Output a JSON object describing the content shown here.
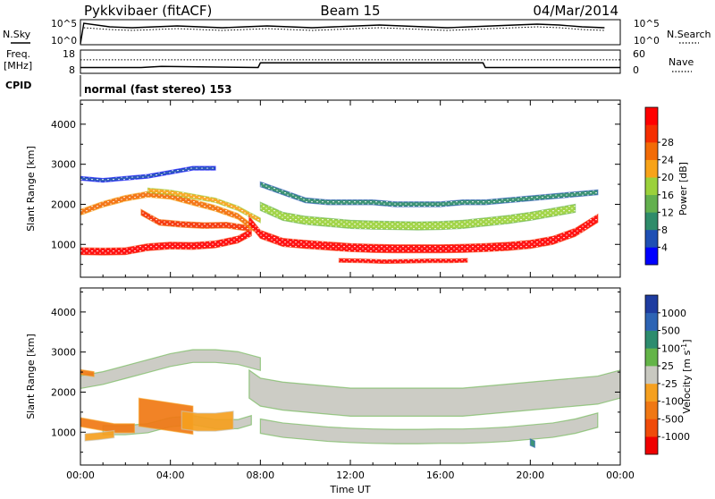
{
  "header": {
    "station": "Pykkvibaer (fitACF)",
    "beam": "Beam 15",
    "date": "04/Mar/2014"
  },
  "top_panels": {
    "nsky_label": "N.Sky",
    "nsearch_label": "N.Search",
    "freq_label_line1": "Freq.",
    "freq_label_line2": "[MHz]",
    "nave_label": "Nave",
    "cpid_label": "CPID",
    "mode_text": "normal (fast stereo) 153",
    "noise_ticks_left": [
      "10^5",
      "10^0"
    ],
    "noise_ticks_right": [
      "10^5",
      "10^0"
    ],
    "freq_ticks": [
      "18",
      "8"
    ],
    "nave_ticks": [
      "60",
      "0"
    ]
  },
  "colors": {
    "power_scale": [
      "#0000ff",
      "#1e4fb4",
      "#2f8c6a",
      "#63b04e",
      "#9bd13b",
      "#f7a319",
      "#f26b06",
      "#f52e00",
      "#ff0000"
    ],
    "velocity_scale": [
      "#1e3ca0",
      "#2d64b4",
      "#2d8c6e",
      "#64b448",
      "#c8c8c0",
      "#f5a020",
      "#f07814",
      "#f04b0a",
      "#f00000"
    ],
    "ground_scatter": "#c8c8c0"
  },
  "chart_data": [
    {
      "type": "line",
      "panel": "noise",
      "series": [
        {
          "name": "N.Sky",
          "style": "solid",
          "level": "high"
        },
        {
          "name": "N.Search",
          "style": "dotted",
          "level": "high"
        }
      ]
    },
    {
      "type": "line",
      "panel": "freq_nave",
      "ylim": [
        8,
        18
      ],
      "y2lim": [
        0,
        60
      ],
      "series": [
        {
          "name": "Freq.",
          "style": "solid",
          "x": [
            0,
            2.7,
            3.6,
            7.9,
            8.0,
            17.9,
            18.0,
            24
          ],
          "y": [
            10.5,
            10.5,
            11,
            10.5,
            12.5,
            12.5,
            10.5,
            10.5
          ]
        },
        {
          "name": "Nave",
          "style": "dotted",
          "x": [
            0,
            24
          ],
          "y": [
            35,
            35
          ]
        }
      ]
    },
    {
      "type": "heatmap",
      "title": "Power",
      "xlabel": "Time UT",
      "ylabel": "Slant Range [km]",
      "x_ticks": [
        "00:00",
        "04:00",
        "08:00",
        "12:00",
        "16:00",
        "20:00",
        "00:00"
      ],
      "xlim": [
        0,
        24
      ],
      "y_ticks": [
        1000,
        2000,
        3000,
        4000
      ],
      "ylim": [
        180,
        4600
      ],
      "colorbar_label": "Power [dB]",
      "colorbar_ticks": [
        4,
        8,
        12,
        16,
        20,
        24,
        28
      ],
      "bands": [
        {
          "x": [
            0,
            1,
            2,
            3,
            4,
            5,
            6,
            7,
            7.6
          ],
          "y": [
            830,
            820,
            830,
            930,
            970,
            960,
            1000,
            1120,
            1300
          ],
          "width": 170,
          "level": 8
        },
        {
          "x": [
            2.7,
            3.5,
            4.5,
            5.5,
            6.5,
            7.5
          ],
          "y": [
            1800,
            1550,
            1500,
            1470,
            1480,
            1400
          ],
          "width": 140,
          "level": 7
        },
        {
          "x": [
            0,
            1,
            2,
            3,
            4,
            5,
            6,
            7,
            7.7
          ],
          "y": [
            1800,
            2000,
            2150,
            2250,
            2200,
            2050,
            1900,
            1700,
            1400
          ],
          "width": 140,
          "level": 6
        },
        {
          "x": [
            3,
            4,
            5,
            6,
            7,
            8
          ],
          "y": [
            2350,
            2300,
            2200,
            2100,
            1900,
            1600
          ],
          "width": 110,
          "level": 5
        },
        {
          "x": [
            7.5,
            8,
            9,
            10,
            11,
            12,
            13,
            14,
            15,
            16,
            17,
            18,
            19,
            20,
            21,
            22,
            23
          ],
          "y": [
            1600,
            1250,
            1050,
            1000,
            960,
            920,
            900,
            890,
            890,
            890,
            900,
            920,
            950,
            1000,
            1100,
            1300,
            1650
          ],
          "width": 200,
          "level": 8
        },
        {
          "x": [
            8,
            9,
            10,
            11,
            12,
            13,
            14,
            15,
            16,
            17,
            18,
            19,
            20,
            21,
            22
          ],
          "y": [
            1950,
            1700,
            1600,
            1550,
            1500,
            1480,
            1470,
            1460,
            1470,
            1500,
            1560,
            1620,
            1700,
            1800,
            1900
          ],
          "width": 200,
          "level": 4
        },
        {
          "x": [
            8,
            9,
            10,
            11,
            12,
            13,
            14,
            15,
            16,
            17,
            18,
            19,
            20,
            21,
            22,
            23
          ],
          "y": [
            2500,
            2300,
            2100,
            2050,
            2050,
            2050,
            2000,
            2000,
            2000,
            2050,
            2050,
            2100,
            2150,
            2200,
            2250,
            2300
          ],
          "width": 120,
          "level": 2
        },
        {
          "x": [
            11.5,
            12.5,
            13.5,
            14.5,
            15.5,
            16.5,
            17.2
          ],
          "y": [
            600,
            590,
            570,
            580,
            590,
            590,
            600
          ],
          "width": 90,
          "level": 8
        },
        {
          "x": [
            0,
            1,
            2,
            3,
            4,
            5,
            6
          ],
          "y": [
            2650,
            2600,
            2650,
            2700,
            2800,
            2900,
            2900
          ],
          "width": 90,
          "level": 1
        }
      ]
    },
    {
      "type": "heatmap",
      "title": "Velocity",
      "xlabel": "Time UT",
      "ylabel": "Slant Range [km]",
      "x_ticks": [
        "00:00",
        "04:00",
        "08:00",
        "12:00",
        "16:00",
        "20:00",
        "00:00"
      ],
      "xlim": [
        0,
        24
      ],
      "y_ticks": [
        1000,
        2000,
        3000,
        4000
      ],
      "ylim": [
        180,
        4600
      ],
      "colorbar_label": "Velocity [m s",
      "colorbar_label_sup": "-1",
      "colorbar_label_end": "]",
      "colorbar_ticks": [
        1000,
        500,
        100,
        25,
        -25,
        -100,
        -500,
        -1000
      ],
      "bands": [
        {
          "x": [
            0,
            1,
            2,
            3,
            4,
            5,
            6,
            7,
            8
          ],
          "y": [
            2250,
            2350,
            2500,
            2650,
            2800,
            2900,
            2900,
            2850,
            2700
          ],
          "width": 320,
          "level": 4
        },
        {
          "x": [
            7.5,
            8,
            9,
            10,
            11,
            12,
            13,
            14,
            15,
            16,
            17,
            18,
            19,
            20,
            21,
            22,
            23,
            24
          ],
          "y": [
            2200,
            2000,
            1900,
            1850,
            1800,
            1750,
            1750,
            1750,
            1750,
            1750,
            1750,
            1800,
            1850,
            1900,
            1950,
            2000,
            2050,
            2200
          ],
          "width": 700,
          "level": 4
        },
        {
          "x": [
            8,
            9,
            10,
            11,
            12,
            13,
            14,
            15,
            16,
            17,
            18,
            19,
            20,
            21,
            22,
            23
          ],
          "y": [
            1150,
            1050,
            1000,
            950,
            920,
            900,
            890,
            890,
            900,
            900,
            920,
            950,
            1000,
            1050,
            1150,
            1300
          ],
          "width": 360,
          "level": 4
        },
        {
          "x": [
            1,
            2,
            3,
            4,
            5,
            6,
            7,
            7.6
          ],
          "y": [
            1050,
            1050,
            1100,
            1250,
            1300,
            1200,
            1200,
            1300
          ],
          "width": 230,
          "level": 4
        },
        {
          "x": [
            2.6,
            3.2,
            3.8,
            4.4,
            5.0
          ],
          "y": [
            1500,
            1450,
            1400,
            1350,
            1300
          ],
          "width": 700,
          "level": 6
        },
        {
          "x": [
            0,
            0.5,
            1,
            1.5,
            2,
            2.4
          ],
          "y": [
            1250,
            1200,
            1150,
            1100,
            1100,
            1100
          ],
          "width": 220,
          "level": 6
        },
        {
          "x": [
            0.2,
            0.8,
            1.5
          ],
          "y": [
            870,
            900,
            950
          ],
          "width": 180,
          "level": 5
        },
        {
          "x": [
            4.5,
            5.2,
            6.0,
            6.8
          ],
          "y": [
            1300,
            1250,
            1250,
            1300
          ],
          "width": 450,
          "level": 5
        },
        {
          "x": [
            0,
            0.6
          ],
          "y": [
            2500,
            2450
          ],
          "width": 120,
          "level": 6
        },
        {
          "x": [
            20.0,
            20.2
          ],
          "y": [
            750,
            700
          ],
          "width": 160,
          "level": 2
        }
      ]
    }
  ]
}
